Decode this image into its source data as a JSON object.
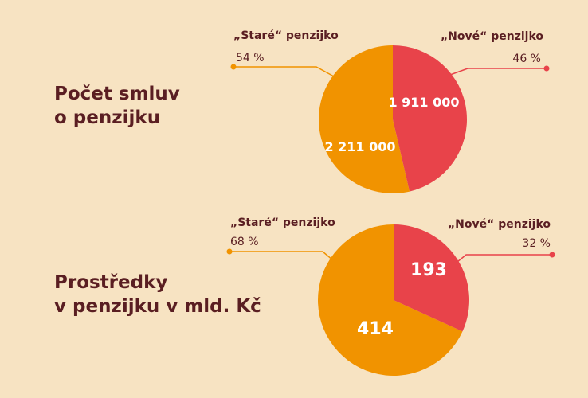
{
  "colors": {
    "background": "#f7e3c2",
    "stare": "#f19300",
    "nove": "#e8434a",
    "text_dark": "#5a1e22"
  },
  "chart_data": [
    {
      "type": "pie",
      "title": [
        "Počet smluv",
        "o penzijku"
      ],
      "slices": [
        {
          "label": "„Staré“ penzijko",
          "percent_label": "54 %",
          "value": 2211000,
          "value_label": "2 211 000",
          "color": "#f19300"
        },
        {
          "label": "„Nové“ penzijko",
          "percent_label": "46 %",
          "value": 1911000,
          "value_label": "1 911 000",
          "color": "#e8434a"
        }
      ]
    },
    {
      "type": "pie",
      "title": [
        "Prostředky",
        "v penzijku v mld. Kč"
      ],
      "slices": [
        {
          "label": "„Staré“ penzijko",
          "percent_label": "68 %",
          "value": 414,
          "value_label": "414",
          "color": "#f19300"
        },
        {
          "label": "„Nové“ penzijko",
          "percent_label": "32 %",
          "value": 193,
          "value_label": "193",
          "color": "#e8434a"
        }
      ]
    }
  ]
}
